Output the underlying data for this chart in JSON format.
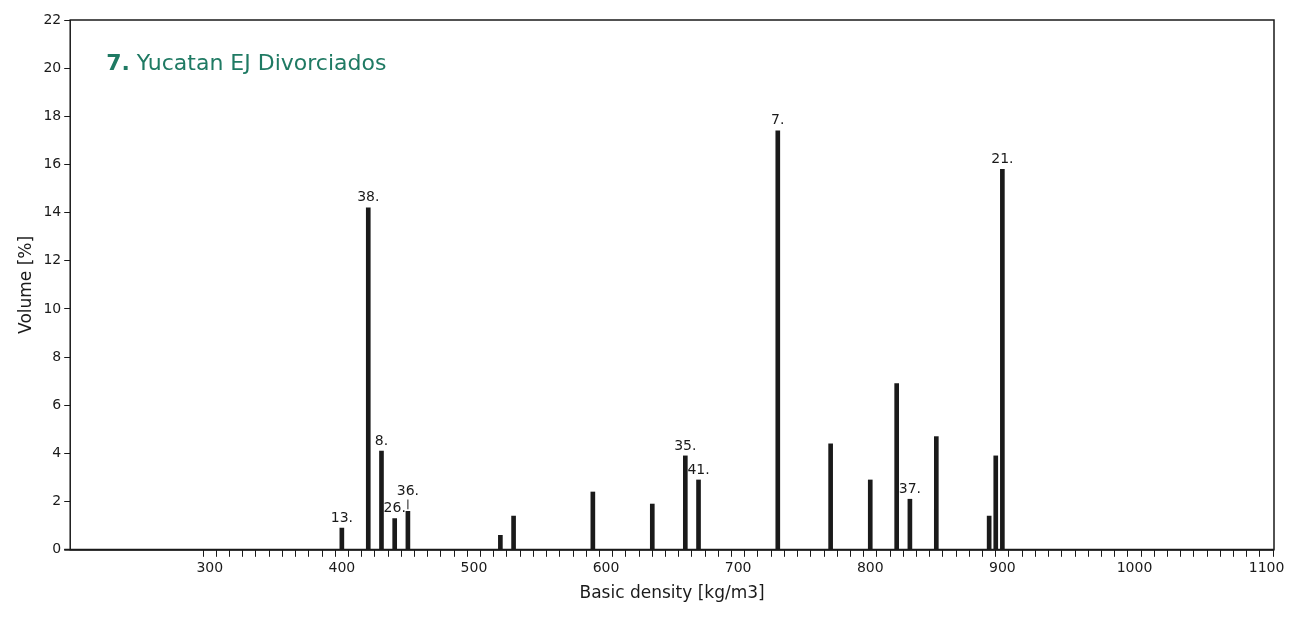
{
  "chart_data": {
    "type": "bar",
    "title": "7. Yucatan EJ Divorciados",
    "xlabel": "Basic density [kg/m3]",
    "ylabel": "Volume [%]",
    "x": [
      400,
      420,
      430,
      440,
      450,
      520,
      530,
      590,
      635,
      660,
      670,
      730,
      770,
      800,
      820,
      830,
      850,
      890,
      895,
      900
    ],
    "values": [
      0.9,
      14.2,
      4.1,
      1.3,
      1.6,
      0.6,
      1.4,
      2.4,
      1.9,
      3.9,
      2.9,
      17.4,
      4.4,
      2.9,
      6.9,
      2.1,
      4.7,
      1.4,
      3.9,
      15.8
    ],
    "color": "#1a1a1a",
    "xlim": [
      200,
      1100
    ],
    "xticks": [
      300,
      {
        "value": 310,
        "label": null
      },
      {
        "value": 320,
        "label": null
      },
      {
        "value": 330,
        "label": null
      },
      {
        "value": 340,
        "label": null
      },
      {
        "value": 350,
        "label": null
      },
      {
        "value": 360,
        "label": null
      },
      {
        "value": 370,
        "label": null
      },
      {
        "value": 380,
        "label": null
      },
      {
        "value": 390,
        "label": null
      },
      400,
      {
        "value": 410,
        "label": null
      },
      {
        "value": 420,
        "label": null
      },
      {
        "value": 430,
        "label": null
      },
      {
        "value": 440,
        "label": null
      },
      {
        "value": 450,
        "label": null
      },
      {
        "value": 460,
        "label": null
      },
      {
        "value": 470,
        "label": null
      },
      {
        "value": 480,
        "label": null
      },
      {
        "value": 490,
        "label": null
      },
      500,
      {
        "value": 510,
        "label": null
      },
      {
        "value": 520,
        "label": null
      },
      {
        "value": 530,
        "label": null
      },
      {
        "value": 540,
        "label": null
      },
      {
        "value": 550,
        "label": null
      },
      {
        "value": 560,
        "label": null
      },
      {
        "value": 570,
        "label": null
      },
      {
        "value": 580,
        "label": null
      },
      {
        "value": 590,
        "label": null
      },
      600,
      {
        "value": 610,
        "label": null
      },
      {
        "value": 620,
        "label": null
      },
      {
        "value": 630,
        "label": null
      },
      {
        "value": 640,
        "label": null
      },
      {
        "value": 650,
        "label": null
      },
      {
        "value": 660,
        "label": null
      },
      {
        "value": 670,
        "label": null
      },
      {
        "value": 680,
        "label": null
      },
      {
        "value": 690,
        "label": null
      },
      700,
      {
        "value": 710,
        "label": null
      },
      {
        "value": 720,
        "label": null
      },
      {
        "value": 730,
        "label": null
      },
      {
        "value": 740,
        "label": null
      },
      {
        "value": 750,
        "label": null
      },
      {
        "value": 760,
        "label": null
      },
      {
        "value": 770,
        "label": null
      },
      {
        "value": 780,
        "label": null
      },
      {
        "value": 790,
        "label": null
      },
      800,
      {
        "value": 810,
        "label": null
      },
      {
        "value": 820,
        "label": null
      },
      {
        "value": 830,
        "label": null
      },
      {
        "value": 840,
        "label": null
      },
      {
        "value": 850,
        "label": null
      },
      {
        "value": 860,
        "label": null
      },
      {
        "value": 870,
        "label": null
      },
      {
        "value": 880,
        "label": null
      },
      {
        "value": 890,
        "label": null
      },
      900,
      {
        "value": 910,
        "label": null
      },
      {
        "value": 920,
        "label": null
      },
      {
        "value": 930,
        "label": null
      },
      {
        "value": 940,
        "label": null
      },
      {
        "value": 950,
        "label": null
      },
      {
        "value": 960,
        "label": null
      },
      {
        "value": 970,
        "label": null
      },
      {
        "value": 980,
        "label": null
      },
      {
        "value": 990,
        "label": null
      },
      1000,
      {
        "value": 1010,
        "label": null
      },
      {
        "value": 1020,
        "label": null
      },
      {
        "value": 1030,
        "label": null
      },
      {
        "value": 1040,
        "label": null
      },
      {
        "value": 1050,
        "label": null
      },
      {
        "value": 1060,
        "label": null
      },
      {
        "value": 1070,
        "label": null
      },
      {
        "value": 1080,
        "label": null
      },
      {
        "value": 1090,
        "label": null
      },
      1100
    ],
    "ylim": [
      0,
      22
    ],
    "yticks": [
      0,
      2,
      4,
      6,
      8,
      10,
      12,
      14,
      16,
      18,
      20,
      22
    ],
    "grid": false,
    "legend": false,
    "annotations": [
      {
        "text": "13.",
        "x": 400,
        "y": 0.9
      },
      {
        "text": "38.",
        "x": 420,
        "y": 14.2
      },
      {
        "text": "8.",
        "x": 430,
        "y": 4.1
      },
      {
        "text": "26.",
        "x": 440,
        "y": 1.3
      },
      {
        "text": "36.",
        "x": 450,
        "y": 1.6
      },
      {
        "text": "35.",
        "x": 660,
        "y": 3.9
      },
      {
        "text": "41.",
        "x": 670,
        "y": 2.9
      },
      {
        "text": "7.",
        "x": 730,
        "y": 17.4
      },
      {
        "text": "37.",
        "x": 830,
        "y": 2.1
      },
      {
        "text": "21.",
        "x": 900,
        "y": 15.8
      }
    ]
  }
}
